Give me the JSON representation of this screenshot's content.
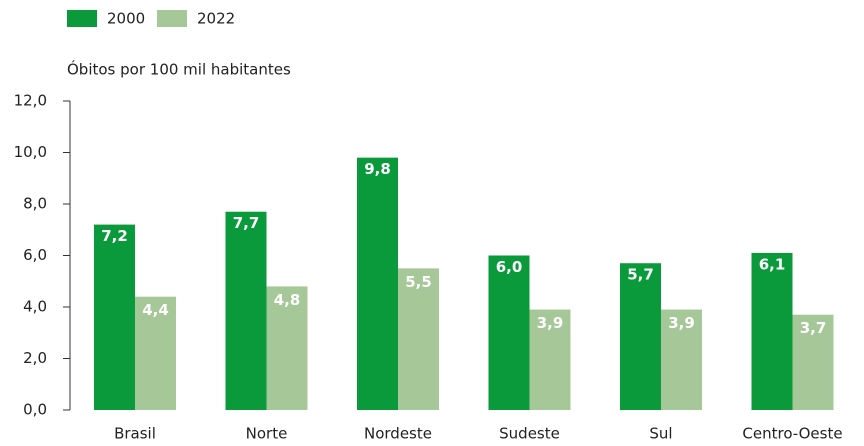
{
  "chart_data": {
    "type": "bar",
    "y_label": "Óbitos por 100 mil habitantes",
    "categories": [
      "Brasil",
      "Norte",
      "Nordeste",
      "Sudeste",
      "Sul",
      "Centro-Oeste"
    ],
    "series": [
      {
        "name": "2000",
        "color": "#0a9a3c",
        "values": [
          7.2,
          7.7,
          9.8,
          6.0,
          5.7,
          6.1
        ],
        "value_labels": [
          "7,2",
          "7,7",
          "9,8",
          "6,0",
          "5,7",
          "6,1"
        ]
      },
      {
        "name": "2022",
        "color": "#a6c797",
        "values": [
          4.4,
          4.8,
          5.5,
          3.9,
          3.9,
          3.7
        ],
        "value_labels": [
          "4,4",
          "4,8",
          "5,5",
          "3,9",
          "3,9",
          "3,7"
        ]
      }
    ],
    "ylim": [
      0,
      12
    ],
    "yticks": [
      {
        "value": 0,
        "label": "0,0"
      },
      {
        "value": 2,
        "label": "2,0"
      },
      {
        "value": 4,
        "label": "4,0"
      },
      {
        "value": 6,
        "label": "6,0"
      },
      {
        "value": 8,
        "label": "8,0"
      },
      {
        "value": 10,
        "label": "10,0"
      },
      {
        "value": 12,
        "label": "12,0"
      }
    ],
    "grid": false
  }
}
